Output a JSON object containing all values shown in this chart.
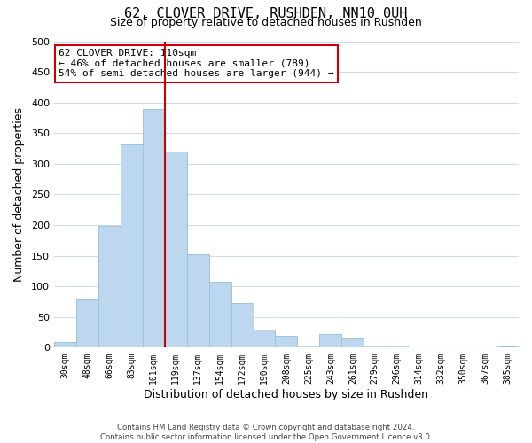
{
  "title": "62, CLOVER DRIVE, RUSHDEN, NN10 0UH",
  "subtitle": "Size of property relative to detached houses in Rushden",
  "xlabel": "Distribution of detached houses by size in Rushden",
  "ylabel": "Number of detached properties",
  "bar_labels": [
    "30sqm",
    "48sqm",
    "66sqm",
    "83sqm",
    "101sqm",
    "119sqm",
    "137sqm",
    "154sqm",
    "172sqm",
    "190sqm",
    "208sqm",
    "225sqm",
    "243sqm",
    "261sqm",
    "279sqm",
    "296sqm",
    "314sqm",
    "332sqm",
    "350sqm",
    "367sqm",
    "385sqm"
  ],
  "bar_values": [
    10,
    78,
    198,
    332,
    390,
    320,
    152,
    108,
    73,
    30,
    20,
    3,
    22,
    15,
    4,
    3,
    0,
    0,
    0,
    0,
    2
  ],
  "bar_color": "#bdd7ee",
  "bar_edge_color": "#9ec4de",
  "vline_color": "#cc0000",
  "annotation_title": "62 CLOVER DRIVE: 110sqm",
  "annotation_line1": "← 46% of detached houses are smaller (789)",
  "annotation_line2": "54% of semi-detached houses are larger (944) →",
  "annotation_box_color": "#ffffff",
  "annotation_box_edge": "#cc0000",
  "ylim": [
    0,
    500
  ],
  "yticks": [
    0,
    50,
    100,
    150,
    200,
    250,
    300,
    350,
    400,
    450,
    500
  ],
  "footer1": "Contains HM Land Registry data © Crown copyright and database right 2024.",
  "footer2": "Contains public sector information licensed under the Open Government Licence v3.0.",
  "background_color": "#ffffff",
  "grid_color": "#d0dcea"
}
